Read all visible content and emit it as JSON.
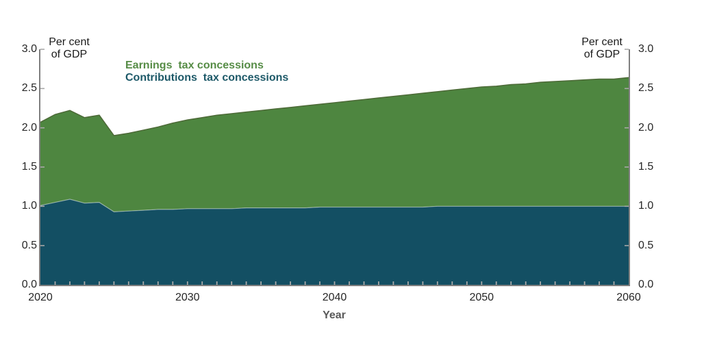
{
  "figure": {
    "y_unit_label": "Per cent\nof GDP",
    "legend": [
      {
        "label": "Earnings  tax concessions",
        "color": "#568c46"
      },
      {
        "label": "Contributions  tax concessions",
        "color": "#1d5968"
      }
    ]
  },
  "chart_data": {
    "type": "area",
    "stacked": true,
    "title": "",
    "xlabel": "Year",
    "ylabel": "Per cent of GDP",
    "xlim": [
      2020,
      2060
    ],
    "ylim": [
      0,
      3
    ],
    "grid": false,
    "legend_position": "top-left-inside",
    "axis_color": "#7f7f7f",
    "tick_color": "#a8a8a8",
    "xticks": [
      2020,
      2030,
      2040,
      2050,
      2060
    ],
    "minor_xtick_interval_years": 1,
    "yticks": [
      0,
      0.5,
      1,
      1.5,
      2,
      2.5,
      3
    ],
    "ytick_labels": [
      "0.0",
      "0.5",
      "1.0",
      "1.5",
      "2.0",
      "2.5",
      "3.0"
    ],
    "x": [
      2020,
      2021,
      2022,
      2023,
      2024,
      2025,
      2026,
      2027,
      2028,
      2029,
      2030,
      2031,
      2032,
      2033,
      2034,
      2035,
      2036,
      2037,
      2038,
      2039,
      2040,
      2041,
      2042,
      2043,
      2044,
      2045,
      2046,
      2047,
      2048,
      2049,
      2050,
      2051,
      2052,
      2053,
      2054,
      2055,
      2056,
      2057,
      2058,
      2059,
      2060
    ],
    "series": [
      {
        "name": "Contributions tax concessions",
        "color": "#134f63",
        "edge_color": "rgba(255,255,255,0.45)",
        "values": [
          1.01,
          1.05,
          1.09,
          1.04,
          1.05,
          0.93,
          0.94,
          0.95,
          0.96,
          0.96,
          0.97,
          0.97,
          0.97,
          0.97,
          0.98,
          0.98,
          0.98,
          0.98,
          0.98,
          0.99,
          0.99,
          0.99,
          0.99,
          0.99,
          0.99,
          0.99,
          0.99,
          1.0,
          1.0,
          1.0,
          1.0,
          1.0,
          1.0,
          1.0,
          1.0,
          1.0,
          1.0,
          1.0,
          1.0,
          1.0,
          1.0
        ]
      },
      {
        "name": "Earnings tax concessions",
        "color": "#4e8640",
        "edge_color": "#4d6b38",
        "values": [
          1.06,
          1.12,
          1.13,
          1.09,
          1.11,
          0.97,
          0.99,
          1.02,
          1.05,
          1.1,
          1.13,
          1.16,
          1.19,
          1.21,
          1.22,
          1.24,
          1.26,
          1.28,
          1.3,
          1.31,
          1.33,
          1.35,
          1.37,
          1.39,
          1.41,
          1.43,
          1.45,
          1.46,
          1.48,
          1.5,
          1.52,
          1.53,
          1.55,
          1.56,
          1.58,
          1.59,
          1.6,
          1.61,
          1.62,
          1.62,
          1.64
        ]
      }
    ]
  }
}
